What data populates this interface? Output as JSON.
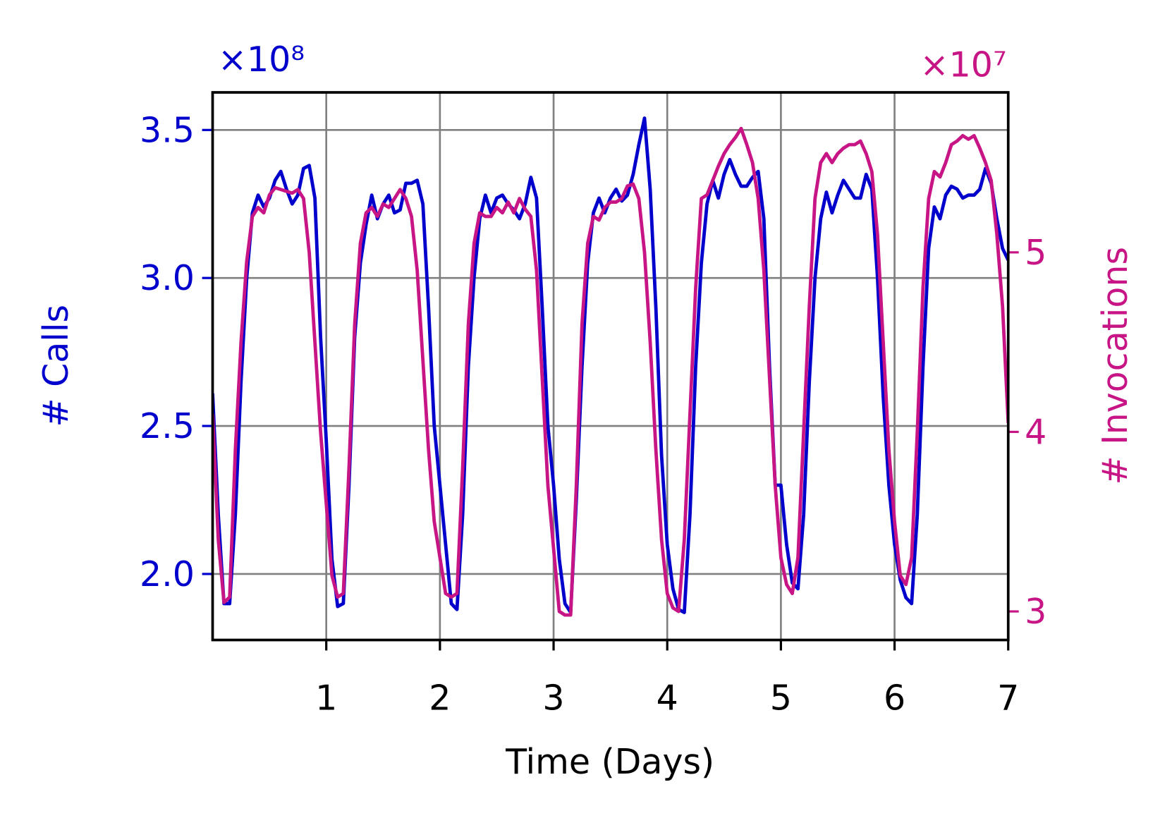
{
  "chart_data": {
    "type": "line",
    "xlabel": "Time (Days)",
    "ylabel": "# Calls",
    "y2label": "# Invocations",
    "y_offset_text": "×10⁸",
    "y2_offset_text": "×10⁷",
    "xlim": [
      0,
      7
    ],
    "xticks": [
      1,
      2,
      3,
      4,
      5,
      6,
      7
    ],
    "ylim": [
      1.777,
      3.627
    ],
    "yticks": [
      {
        "value": 2,
        "label": "2.0"
      },
      2.5,
      {
        "value": 3,
        "label": "3.0"
      },
      3.5
    ],
    "y2lim": [
      2.841,
      5.891
    ],
    "y2ticks": [
      3,
      4,
      5
    ],
    "grid": true,
    "x": [
      0,
      0.05,
      0.1,
      0.15,
      0.2,
      0.25,
      0.3,
      0.35,
      0.4,
      0.45,
      0.5,
      0.55,
      0.6,
      0.65,
      0.7,
      0.75,
      0.8,
      0.85,
      0.9,
      0.95,
      1,
      1.05,
      1.1,
      1.15,
      1.2,
      1.25,
      1.3,
      1.35,
      1.4,
      1.45,
      1.5,
      1.55,
      1.6,
      1.65,
      1.7,
      1.75,
      1.8,
      1.85,
      1.9,
      1.95,
      2,
      2.05,
      2.1,
      2.15,
      2.2,
      2.25,
      2.3,
      2.35,
      2.4,
      2.45,
      2.5,
      2.55,
      2.6,
      2.65,
      2.7,
      2.75,
      2.8,
      2.85,
      2.9,
      2.95,
      3,
      3.05,
      3.1,
      3.15,
      3.2,
      3.25,
      3.3,
      3.35,
      3.4,
      3.45,
      3.5,
      3.55,
      3.6,
      3.65,
      3.7,
      3.75,
      3.8,
      3.85,
      3.9,
      3.95,
      4,
      4.05,
      4.1,
      4.15,
      4.2,
      4.25,
      4.3,
      4.35,
      4.4,
      4.45,
      4.5,
      4.55,
      4.6,
      4.65,
      4.7,
      4.75,
      4.8,
      4.85,
      4.9,
      4.95,
      5,
      5.05,
      5.1,
      5.15,
      5.2,
      5.25,
      5.3,
      5.35,
      5.4,
      5.45,
      5.5,
      5.55,
      5.6,
      5.65,
      5.7,
      5.75,
      5.8,
      5.85,
      5.9,
      5.95,
      6,
      6.05,
      6.1,
      6.15,
      6.2,
      6.25,
      6.3,
      6.35,
      6.4,
      6.45,
      6.5,
      6.55,
      6.6,
      6.65,
      6.7,
      6.75,
      6.8,
      6.85,
      6.9,
      6.95,
      7
    ],
    "series": [
      {
        "name": "# Calls",
        "color": "#0000cc",
        "values": [
          2.61,
          2.2,
          1.9,
          1.9,
          2.2,
          2.65,
          3.0,
          3.22,
          3.28,
          3.24,
          3.27,
          3.33,
          3.36,
          3.3,
          3.25,
          3.28,
          3.37,
          3.38,
          3.27,
          2.8,
          2.45,
          2.05,
          1.89,
          1.9,
          2.3,
          2.8,
          3.05,
          3.18,
          3.28,
          3.2,
          3.25,
          3.28,
          3.22,
          3.23,
          3.32,
          3.32,
          3.33,
          3.25,
          2.9,
          2.5,
          2.3,
          2.1,
          1.9,
          1.88,
          2.2,
          2.7,
          3.0,
          3.2,
          3.28,
          3.22,
          3.27,
          3.28,
          3.25,
          3.23,
          3.2,
          3.25,
          3.34,
          3.27,
          2.9,
          2.5,
          2.3,
          2.05,
          1.9,
          1.87,
          2.25,
          2.7,
          3.05,
          3.22,
          3.27,
          3.22,
          3.27,
          3.3,
          3.26,
          3.28,
          3.35,
          3.45,
          3.54,
          3.3,
          2.9,
          2.4,
          2.1,
          1.95,
          1.88,
          1.87,
          2.2,
          2.7,
          3.05,
          3.25,
          3.33,
          3.27,
          3.35,
          3.4,
          3.35,
          3.31,
          3.31,
          3.34,
          3.36,
          3.2,
          2.7,
          2.3,
          2.3,
          2.1,
          1.97,
          1.95,
          2.2,
          2.65,
          3.0,
          3.2,
          3.29,
          3.22,
          3.28,
          3.33,
          3.3,
          3.27,
          3.27,
          3.35,
          3.3,
          3.0,
          2.6,
          2.3,
          2.1,
          1.98,
          1.92,
          1.9,
          2.2,
          2.7,
          3.1,
          3.24,
          3.2,
          3.28,
          3.31,
          3.3,
          3.27,
          3.28,
          3.28,
          3.3,
          3.37,
          3.32,
          3.2,
          3.1,
          3.06
        ]
      },
      {
        "name": "# Invocations",
        "color": "#c71585",
        "axis": "y2",
        "values": [
          4.1,
          3.4,
          3.05,
          3.08,
          3.9,
          4.5,
          4.95,
          5.2,
          5.25,
          5.22,
          5.32,
          5.36,
          5.35,
          5.34,
          5.33,
          5.35,
          5.3,
          5.0,
          4.5,
          4.0,
          3.6,
          3.2,
          3.08,
          3.1,
          3.8,
          4.6,
          5.05,
          5.22,
          5.25,
          5.2,
          5.27,
          5.25,
          5.3,
          5.35,
          5.3,
          5.2,
          4.9,
          4.4,
          3.9,
          3.5,
          3.3,
          3.1,
          3.08,
          3.1,
          3.8,
          4.6,
          5.05,
          5.22,
          5.2,
          5.2,
          5.25,
          5.22,
          5.28,
          5.22,
          5.3,
          5.24,
          5.2,
          4.9,
          4.3,
          3.7,
          3.35,
          3.0,
          2.98,
          2.98,
          3.7,
          4.6,
          5.05,
          5.2,
          5.18,
          5.25,
          5.28,
          5.28,
          5.3,
          5.37,
          5.38,
          5.3,
          5.0,
          4.5,
          3.9,
          3.4,
          3.1,
          3.02,
          3.0,
          3.4,
          4.1,
          4.8,
          5.3,
          5.32,
          5.4,
          5.48,
          5.55,
          5.6,
          5.64,
          5.69,
          5.6,
          5.5,
          5.3,
          4.9,
          4.3,
          3.7,
          3.3,
          3.15,
          3.1,
          3.3,
          4.0,
          4.7,
          5.3,
          5.5,
          5.55,
          5.5,
          5.55,
          5.58,
          5.6,
          5.6,
          5.62,
          5.55,
          5.45,
          5.1,
          4.5,
          3.9,
          3.5,
          3.2,
          3.15,
          3.3,
          4.0,
          4.8,
          5.3,
          5.45,
          5.42,
          5.5,
          5.6,
          5.62,
          5.65,
          5.63,
          5.65,
          5.58,
          5.5,
          5.4,
          5.1,
          4.7,
          4.05
        ]
      }
    ]
  }
}
